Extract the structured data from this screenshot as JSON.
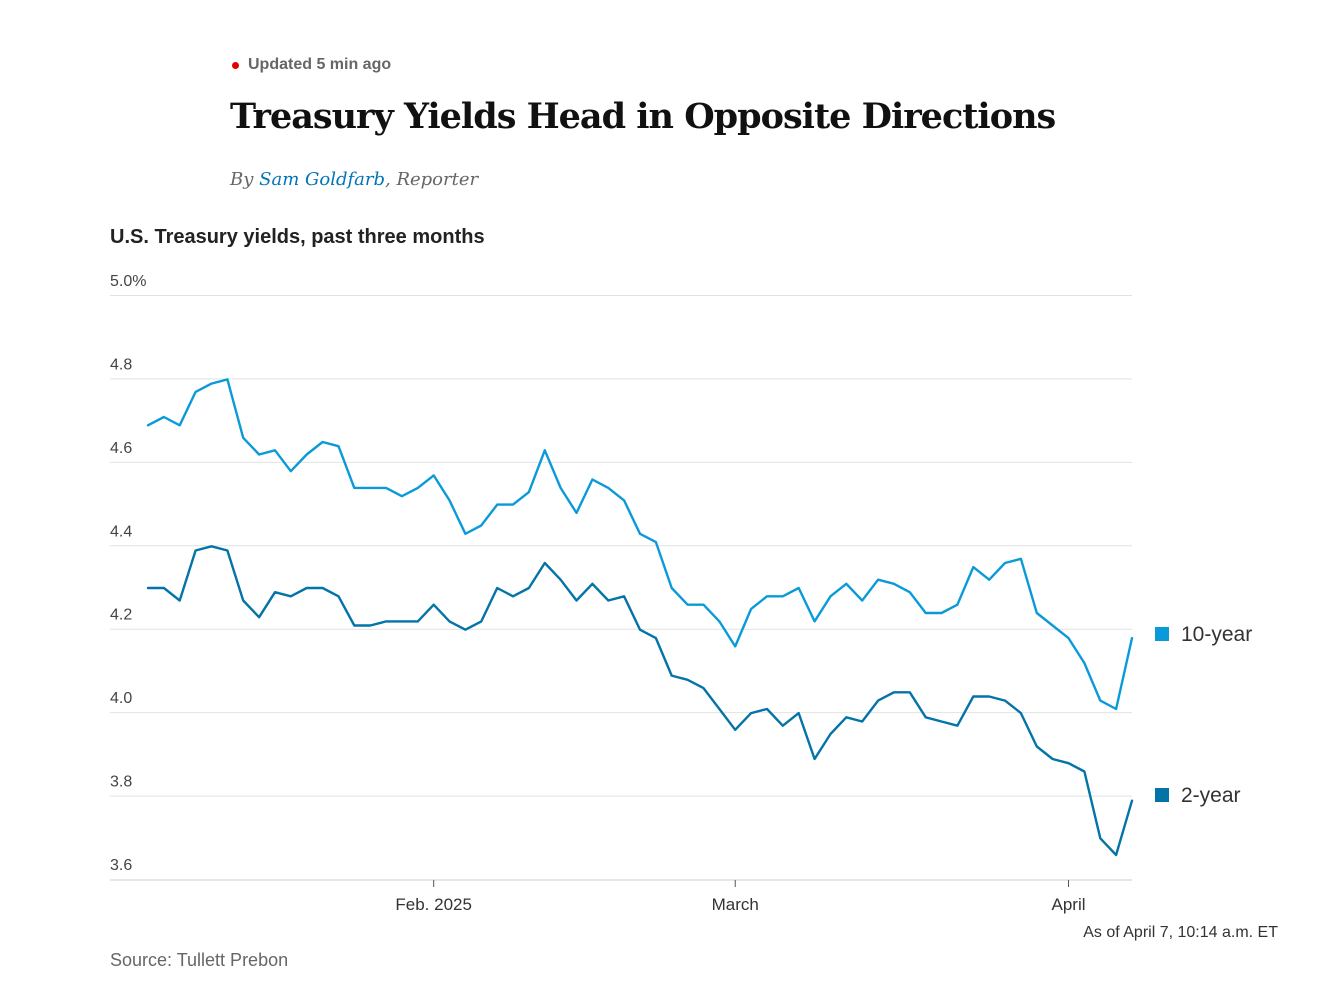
{
  "header": {
    "updated": "Updated 5 min ago",
    "headline": "Treasury Yields Head in Opposite Directions",
    "byline_prefix": "By ",
    "author": "Sam Goldfarb",
    "byline_suffix": ", Reporter"
  },
  "chart_data": {
    "type": "line",
    "title": "U.S. Treasury yields, past three months",
    "ylim": [
      3.6,
      5.0
    ],
    "yticks": [
      {
        "value": 5.0,
        "label": "5.0%"
      },
      {
        "value": 4.8,
        "label": "4.8"
      },
      {
        "value": 4.6,
        "label": "4.6"
      },
      {
        "value": 4.4,
        "label": "4.4"
      },
      {
        "value": 4.2,
        "label": "4.2"
      },
      {
        "value": 4.0,
        "label": "4.0"
      },
      {
        "value": 3.8,
        "label": "3.8"
      },
      {
        "value": 3.6,
        "label": "3.6"
      }
    ],
    "xticks": [
      {
        "index": 18,
        "label": "Feb. 2025"
      },
      {
        "index": 37,
        "label": "March"
      },
      {
        "index": 58,
        "label": "April"
      }
    ],
    "series": [
      {
        "name": "10-year",
        "color": "#0b9ad9",
        "values": [
          4.69,
          4.71,
          4.69,
          4.77,
          4.79,
          4.8,
          4.66,
          4.62,
          4.63,
          4.58,
          4.62,
          4.65,
          4.64,
          4.54,
          4.54,
          4.54,
          4.52,
          4.54,
          4.57,
          4.51,
          4.43,
          4.45,
          4.5,
          4.5,
          4.53,
          4.63,
          4.54,
          4.48,
          4.56,
          4.54,
          4.51,
          4.43,
          4.41,
          4.3,
          4.26,
          4.26,
          4.22,
          4.16,
          4.25,
          4.28,
          4.28,
          4.3,
          4.22,
          4.28,
          4.31,
          4.27,
          4.32,
          4.31,
          4.29,
          4.24,
          4.24,
          4.26,
          4.35,
          4.32,
          4.36,
          4.37,
          4.24,
          4.21,
          4.18,
          4.12,
          4.03,
          4.01,
          4.18
        ]
      },
      {
        "name": "2-year",
        "color": "#0474a8",
        "values": [
          4.3,
          4.3,
          4.27,
          4.39,
          4.4,
          4.39,
          4.27,
          4.23,
          4.29,
          4.28,
          4.3,
          4.3,
          4.28,
          4.21,
          4.21,
          4.22,
          4.22,
          4.22,
          4.26,
          4.22,
          4.2,
          4.22,
          4.3,
          4.28,
          4.3,
          4.36,
          4.32,
          4.27,
          4.31,
          4.27,
          4.28,
          4.2,
          4.18,
          4.09,
          4.08,
          4.06,
          4.01,
          3.96,
          4.0,
          4.01,
          3.97,
          4.0,
          3.89,
          3.95,
          3.99,
          3.98,
          4.03,
          4.05,
          4.05,
          3.99,
          3.98,
          3.97,
          4.04,
          4.04,
          4.03,
          4.0,
          3.92,
          3.89,
          3.88,
          3.86,
          3.7,
          3.66,
          3.79
        ]
      }
    ],
    "legend": "right"
  },
  "footer": {
    "as_of": "As of April 7, 10:14 a.m. ET",
    "source": "Source: Tullett Prebon"
  }
}
